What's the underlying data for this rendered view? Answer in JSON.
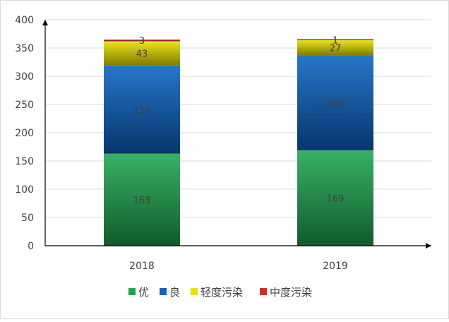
{
  "chart_data": {
    "type": "bar",
    "stacked": true,
    "categories": [
      "2018",
      "2019"
    ],
    "series": [
      {
        "name": "优",
        "values": [
          163,
          169
        ],
        "color": "#1ea650"
      },
      {
        "name": "良",
        "values": [
          156,
          168
        ],
        "color": "#0a63c2"
      },
      {
        "name": "轻度污染",
        "values": [
          43,
          27
        ],
        "color": "#e8e000"
      },
      {
        "name": "中度污染",
        "values": [
          3,
          1
        ],
        "color": "#d62b2b"
      }
    ],
    "ylim": [
      0,
      400
    ],
    "yticks": [
      "0",
      "50",
      "100",
      "150",
      "200",
      "250",
      "300",
      "350",
      "400"
    ],
    "grid": true,
    "legend_position": "bottom"
  }
}
